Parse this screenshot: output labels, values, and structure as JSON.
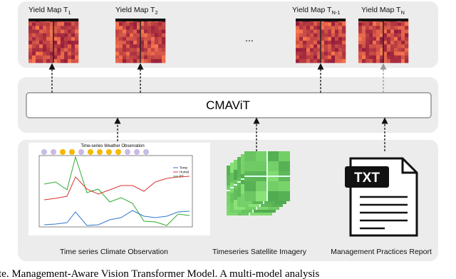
{
  "yield_maps": [
    {
      "label": "Yield Map T",
      "sub": "1"
    },
    {
      "label": "Yield Map T",
      "sub": "2"
    },
    {
      "label": "Yield Map T",
      "sub": "N-1"
    },
    {
      "label": "Yield Map T",
      "sub": "N"
    }
  ],
  "ellipsis": "...",
  "model": {
    "label": "CMAViT"
  },
  "inputs": [
    {
      "label": "Time series Climate Observation"
    },
    {
      "label": "Timeseries Satellite Imagery"
    },
    {
      "label": "Management Practices Report"
    }
  ],
  "climate_chart": {
    "title": "Time-series Weather Observation",
    "legend": [
      "Temp",
      "Humid",
      "ET"
    ]
  },
  "document": {
    "icon_text": "TXT"
  },
  "caption": "te.  Management-Aware Vision Transformer Model.  A multi-model analysis"
}
